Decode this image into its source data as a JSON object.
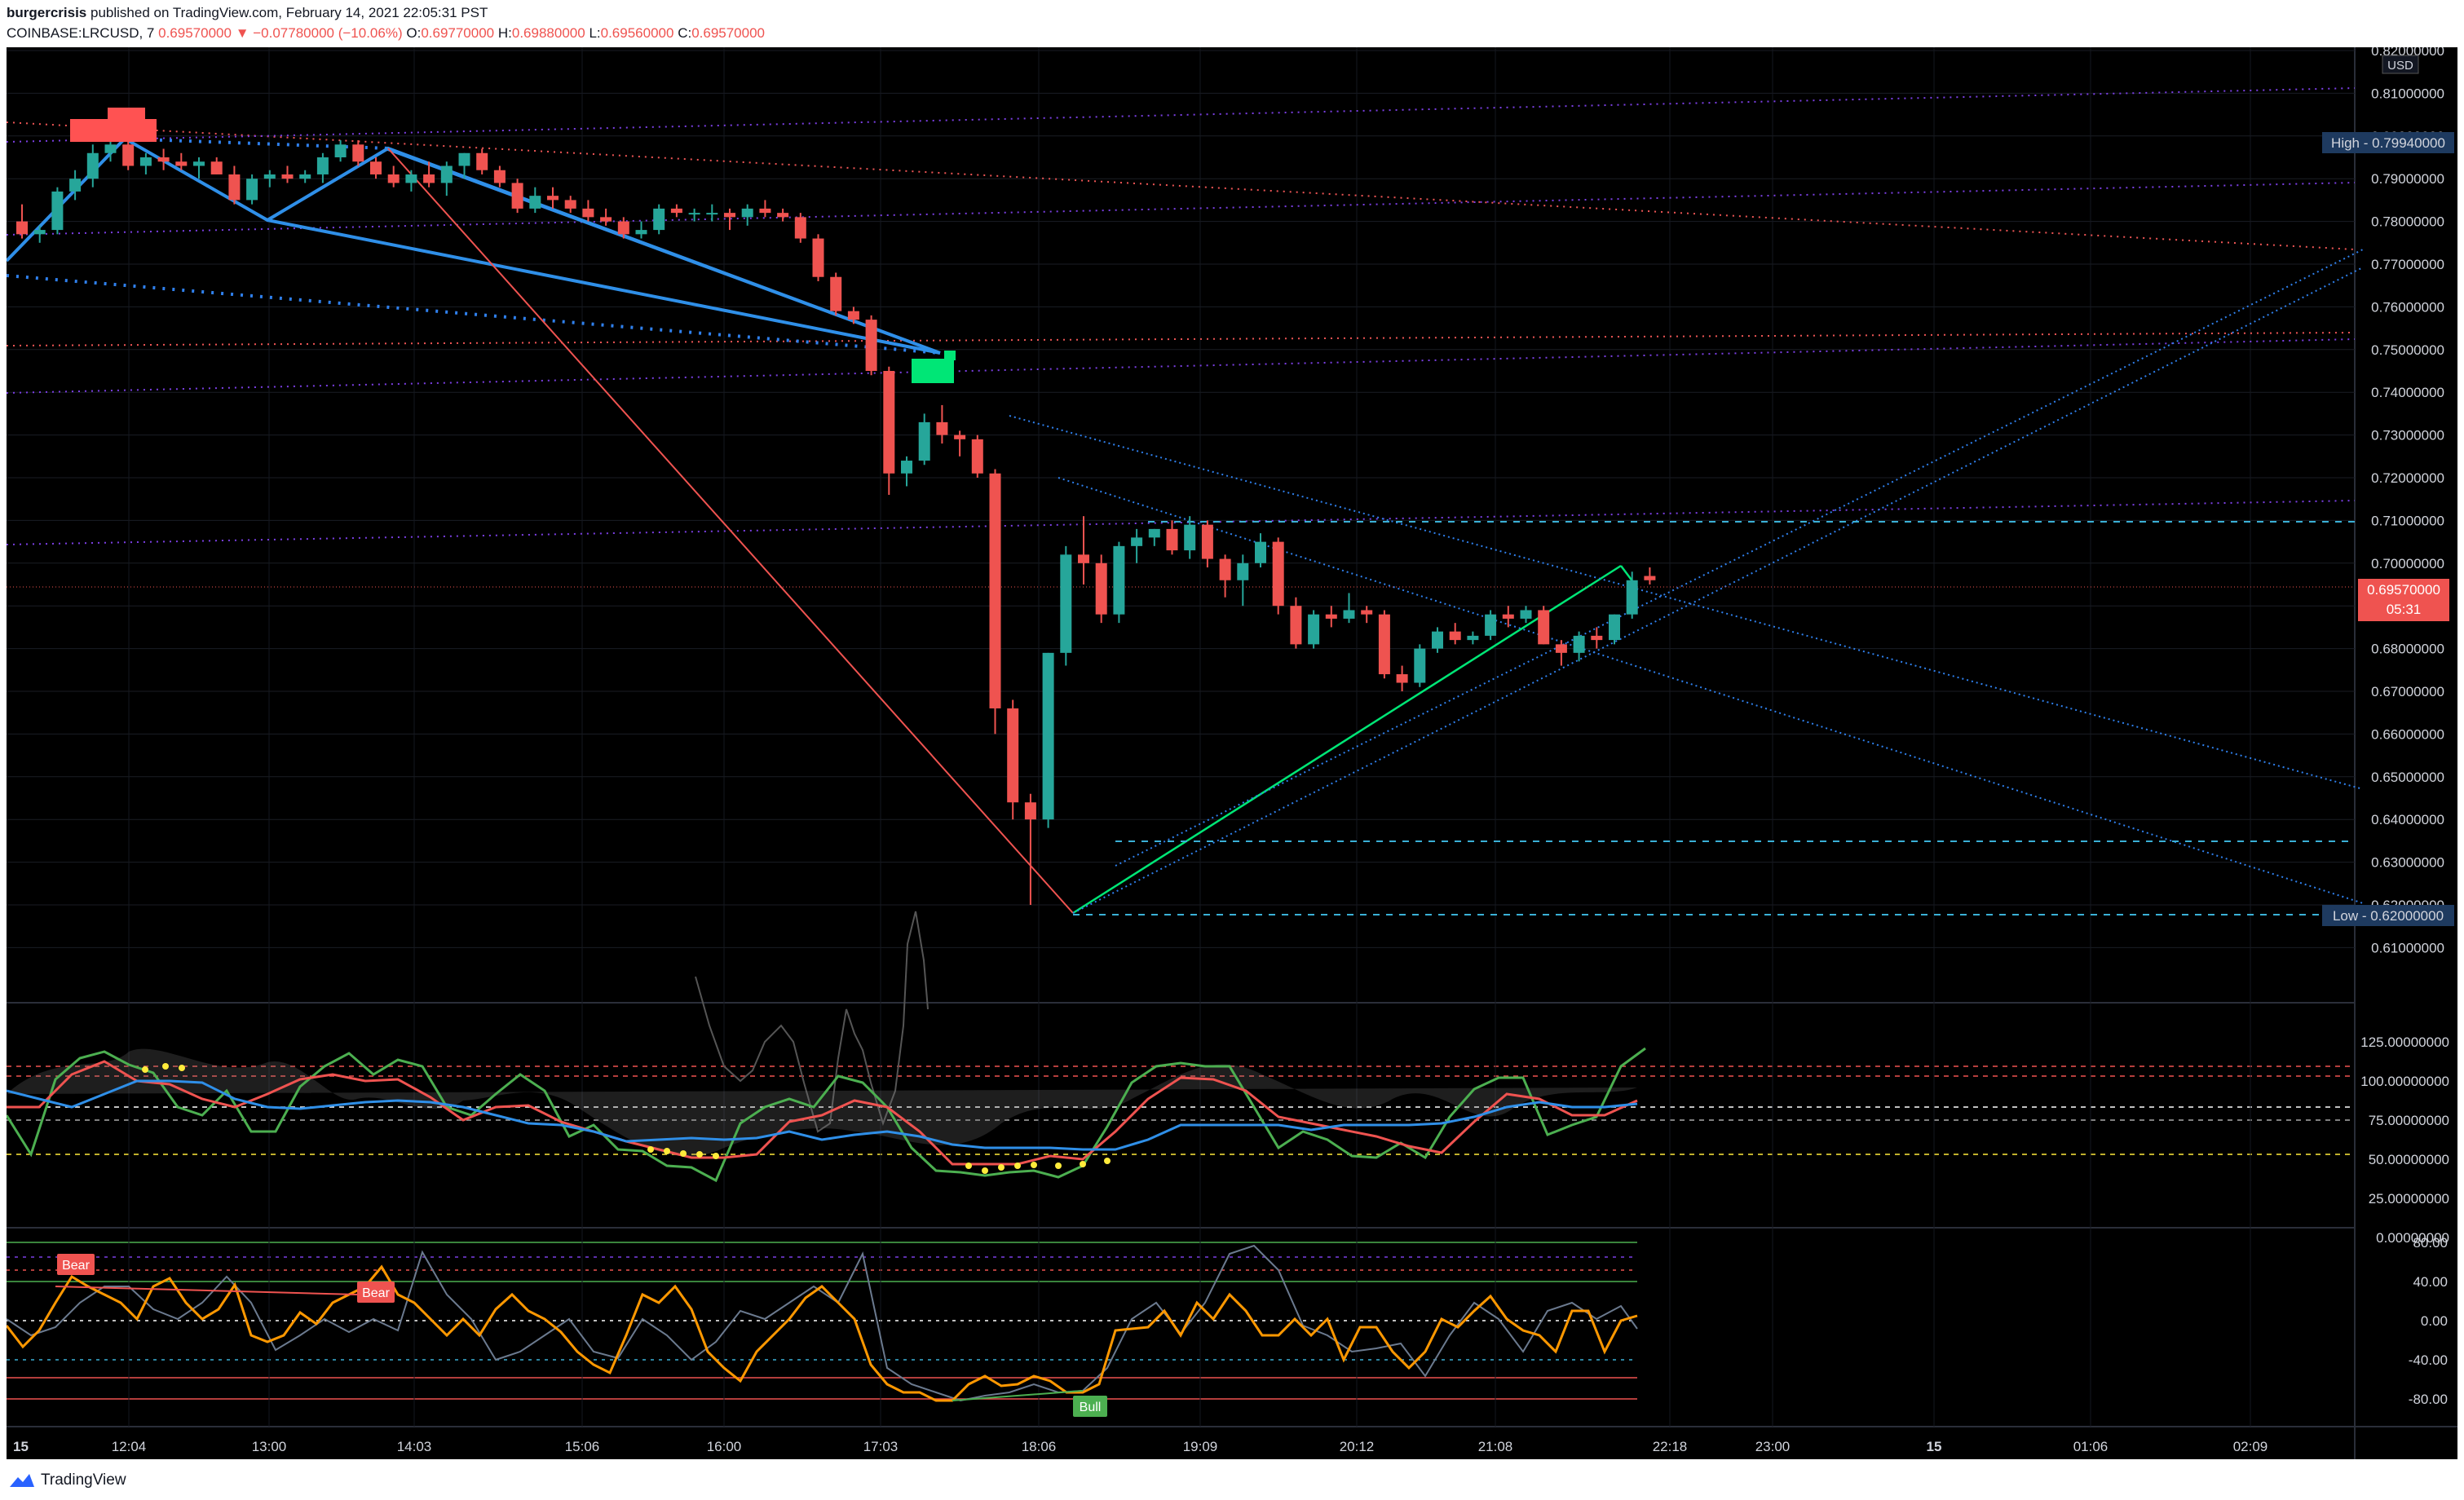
{
  "header": {
    "author": "burgercrisis",
    "published_line": "published on TradingView.com, February 14, 2021 22:05:31 PST",
    "symbol_line": "COINBASE:LRCUSD, 7",
    "last_price": "0.69570000",
    "change_arrow": "▼",
    "change": "−0.07780000 (−10.06%)",
    "open_label": "O:",
    "open": "0.69770000",
    "high_label": "H:",
    "high": "0.69880000",
    "low_label": "L:",
    "low": "0.69560000",
    "close_label": "C:",
    "close": "0.69570000"
  },
  "footer": {
    "brand": "TradingView"
  },
  "colors": {
    "up": "#26a69a",
    "down": "#ef5350",
    "background": "#000000",
    "axis_text": "#d1d4dc",
    "label_box": "#1e3a5f"
  },
  "price_axis": {
    "currency": "USD",
    "ticks": [
      "0.82000000",
      "0.81000000",
      "0.80000000",
      "0.79000000",
      "0.78000000",
      "0.77000000",
      "0.76000000",
      "0.75000000",
      "0.74000000",
      "0.73000000",
      "0.72000000",
      "0.71000000",
      "0.70000000",
      "0.69000000",
      "0.68000000",
      "0.67000000",
      "0.66000000",
      "0.65000000",
      "0.64000000",
      "0.63000000",
      "0.62000000",
      "0.61000000"
    ],
    "high_label": "High - 0.79940000",
    "low_label": "Low - 0.62000000",
    "last_label": "0.69570000",
    "countdown": "05:31"
  },
  "osc1_axis": {
    "ticks": [
      "125.00000000",
      "100.00000000",
      "75.00000000",
      "50.00000000",
      "25.00000000",
      "0.00000000"
    ]
  },
  "osc2_axis": {
    "ticks": [
      "80.00",
      "40.00",
      "0.00",
      "-40.00",
      "-80.00"
    ]
  },
  "time_axis": {
    "ticks": [
      "15",
      "12:04",
      "13:00",
      "14:03",
      "15:06",
      "16:00",
      "17:03",
      "18:06",
      "19:09",
      "20:12",
      "21:08",
      "22:18",
      "23:00",
      "15",
      "01:06",
      "02:09"
    ]
  },
  "annotations": {
    "bear1": "Bear",
    "bear2": "Bear",
    "bull": "Bull"
  },
  "chart_data": {
    "type": "candlestick",
    "symbol": "COINBASE:LRCUSD",
    "interval": "7",
    "ylim": [
      0.6,
      0.82
    ],
    "high": 0.7994,
    "low": 0.62,
    "candles": [
      [
        0.78,
        0.784,
        0.776,
        0.777
      ],
      [
        0.777,
        0.779,
        0.775,
        0.778
      ],
      [
        0.778,
        0.788,
        0.777,
        0.787
      ],
      [
        0.787,
        0.792,
        0.785,
        0.79
      ],
      [
        0.79,
        0.798,
        0.788,
        0.796
      ],
      [
        0.796,
        0.8,
        0.794,
        0.798
      ],
      [
        0.798,
        0.799,
        0.792,
        0.793
      ],
      [
        0.793,
        0.796,
        0.791,
        0.795
      ],
      [
        0.795,
        0.797,
        0.792,
        0.794
      ],
      [
        0.794,
        0.796,
        0.792,
        0.793
      ],
      [
        0.793,
        0.795,
        0.79,
        0.794
      ],
      [
        0.794,
        0.795,
        0.791,
        0.791
      ],
      [
        0.791,
        0.793,
        0.784,
        0.785
      ],
      [
        0.785,
        0.791,
        0.784,
        0.79
      ],
      [
        0.79,
        0.792,
        0.788,
        0.791
      ],
      [
        0.791,
        0.793,
        0.789,
        0.79
      ],
      [
        0.79,
        0.792,
        0.789,
        0.791
      ],
      [
        0.791,
        0.796,
        0.789,
        0.795
      ],
      [
        0.795,
        0.799,
        0.794,
        0.798
      ],
      [
        0.798,
        0.799,
        0.793,
        0.794
      ],
      [
        0.794,
        0.795,
        0.79,
        0.791
      ],
      [
        0.791,
        0.793,
        0.788,
        0.789
      ],
      [
        0.789,
        0.792,
        0.787,
        0.791
      ],
      [
        0.791,
        0.794,
        0.788,
        0.789
      ],
      [
        0.789,
        0.794,
        0.786,
        0.793
      ],
      [
        0.793,
        0.796,
        0.79,
        0.796
      ],
      [
        0.796,
        0.797,
        0.791,
        0.792
      ],
      [
        0.792,
        0.793,
        0.788,
        0.789
      ],
      [
        0.789,
        0.79,
        0.782,
        0.783
      ],
      [
        0.783,
        0.788,
        0.782,
        0.786
      ],
      [
        0.786,
        0.788,
        0.783,
        0.785
      ],
      [
        0.785,
        0.786,
        0.782,
        0.783
      ],
      [
        0.783,
        0.785,
        0.78,
        0.781
      ],
      [
        0.781,
        0.783,
        0.779,
        0.78
      ],
      [
        0.78,
        0.781,
        0.776,
        0.777
      ],
      [
        0.777,
        0.78,
        0.776,
        0.778
      ],
      [
        0.778,
        0.784,
        0.777,
        0.783
      ],
      [
        0.783,
        0.784,
        0.781,
        0.782
      ],
      [
        0.782,
        0.783,
        0.78,
        0.782
      ],
      [
        0.782,
        0.784,
        0.78,
        0.782
      ],
      [
        0.782,
        0.783,
        0.778,
        0.781
      ],
      [
        0.781,
        0.784,
        0.779,
        0.783
      ],
      [
        0.783,
        0.785,
        0.781,
        0.782
      ],
      [
        0.782,
        0.783,
        0.78,
        0.781
      ],
      [
        0.781,
        0.782,
        0.775,
        0.776
      ],
      [
        0.776,
        0.777,
        0.766,
        0.767
      ],
      [
        0.767,
        0.768,
        0.758,
        0.759
      ],
      [
        0.759,
        0.76,
        0.756,
        0.757
      ],
      [
        0.757,
        0.758,
        0.744,
        0.745
      ],
      [
        0.745,
        0.746,
        0.716,
        0.721
      ],
      [
        0.721,
        0.725,
        0.718,
        0.724
      ],
      [
        0.724,
        0.735,
        0.723,
        0.733
      ],
      [
        0.733,
        0.737,
        0.728,
        0.73
      ],
      [
        0.73,
        0.731,
        0.725,
        0.729
      ],
      [
        0.729,
        0.73,
        0.72,
        0.721
      ],
      [
        0.721,
        0.722,
        0.66,
        0.666
      ],
      [
        0.666,
        0.668,
        0.64,
        0.644
      ],
      [
        0.644,
        0.646,
        0.62,
        0.64
      ],
      [
        0.64,
        0.679,
        0.638,
        0.679
      ],
      [
        0.679,
        0.704,
        0.676,
        0.702
      ],
      [
        0.702,
        0.711,
        0.695,
        0.7
      ],
      [
        0.7,
        0.702,
        0.686,
        0.688
      ],
      [
        0.688,
        0.705,
        0.686,
        0.704
      ],
      [
        0.704,
        0.708,
        0.7,
        0.706
      ],
      [
        0.706,
        0.708,
        0.704,
        0.708
      ],
      [
        0.708,
        0.71,
        0.702,
        0.703
      ],
      [
        0.703,
        0.711,
        0.701,
        0.709
      ],
      [
        0.709,
        0.71,
        0.699,
        0.701
      ],
      [
        0.701,
        0.702,
        0.692,
        0.696
      ],
      [
        0.696,
        0.702,
        0.69,
        0.7
      ],
      [
        0.7,
        0.707,
        0.699,
        0.705
      ],
      [
        0.705,
        0.706,
        0.688,
        0.69
      ],
      [
        0.69,
        0.692,
        0.68,
        0.681
      ],
      [
        0.681,
        0.689,
        0.68,
        0.688
      ],
      [
        0.688,
        0.69,
        0.685,
        0.687
      ],
      [
        0.687,
        0.693,
        0.686,
        0.689
      ],
      [
        0.689,
        0.69,
        0.686,
        0.688
      ],
      [
        0.688,
        0.689,
        0.673,
        0.674
      ],
      [
        0.674,
        0.676,
        0.67,
        0.672
      ],
      [
        0.672,
        0.681,
        0.671,
        0.68
      ],
      [
        0.68,
        0.685,
        0.679,
        0.684
      ],
      [
        0.684,
        0.686,
        0.681,
        0.682
      ],
      [
        0.682,
        0.684,
        0.681,
        0.683
      ],
      [
        0.683,
        0.689,
        0.682,
        0.688
      ],
      [
        0.688,
        0.69,
        0.685,
        0.687
      ],
      [
        0.687,
        0.69,
        0.686,
        0.689
      ],
      [
        0.689,
        0.69,
        0.681,
        0.681
      ],
      [
        0.681,
        0.682,
        0.676,
        0.679
      ],
      [
        0.679,
        0.684,
        0.677,
        0.683
      ],
      [
        0.683,
        0.685,
        0.68,
        0.682
      ],
      [
        0.682,
        0.688,
        0.681,
        0.688
      ],
      [
        0.688,
        0.698,
        0.687,
        0.696
      ],
      [
        0.697,
        0.699,
        0.695,
        0.696
      ]
    ]
  }
}
